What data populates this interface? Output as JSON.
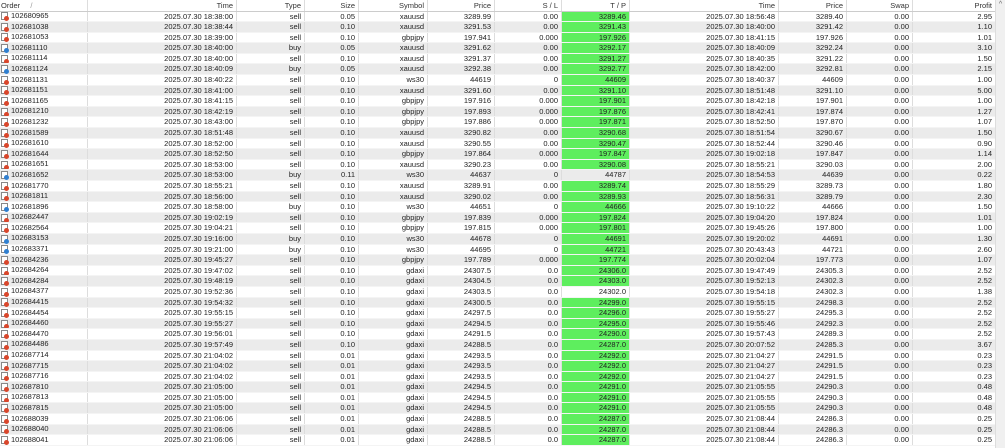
{
  "columns": [
    "Order",
    "Time",
    "Type",
    "Size",
    "Symbol",
    "Price",
    "S / L",
    "T / P",
    "Time",
    "Price",
    "Swap",
    "Profit"
  ],
  "sort_indicator": "/",
  "colors": {
    "tp_highlight": "#5eee5e",
    "sell_icon": "#d9462b",
    "buy_icon": "#2f7fd0",
    "row_alt": "#ebebeb"
  },
  "scroll_up_icon": "^",
  "rows": [
    [
      "102680965",
      "2025.07.30 18:38:00",
      "sell",
      "0.05",
      "xauusd",
      "3289.99",
      "0.00",
      "3289.46",
      "2025.07.30 18:56:48",
      "3289.40",
      "0.00",
      "2.95",
      true
    ],
    [
      "102681038",
      "2025.07.30 18:38:44",
      "sell",
      "0.10",
      "xauusd",
      "3291.53",
      "0.00",
      "3291.43",
      "2025.07.30 18:40:00",
      "3291.42",
      "0.00",
      "1.10",
      true
    ],
    [
      "102681053",
      "2025.07.30 18:39:00",
      "sell",
      "0.10",
      "gbpjpy",
      "197.941",
      "0.000",
      "197.926",
      "2025.07.30 18:41:15",
      "197.926",
      "0.00",
      "1.01",
      true
    ],
    [
      "102681110",
      "2025.07.30 18:40:00",
      "buy",
      "0.05",
      "xauusd",
      "3291.62",
      "0.00",
      "3292.17",
      "2025.07.30 18:40:09",
      "3292.24",
      "0.00",
      "3.10",
      true
    ],
    [
      "102681114",
      "2025.07.30 18:40:00",
      "sell",
      "0.10",
      "xauusd",
      "3291.37",
      "0.00",
      "3291.27",
      "2025.07.30 18:40:35",
      "3291.22",
      "0.00",
      "1.50",
      true
    ],
    [
      "102681124",
      "2025.07.30 18:40:09",
      "buy",
      "0.05",
      "xauusd",
      "3292.38",
      "0.00",
      "3292.77",
      "2025.07.30 18:42:00",
      "3292.81",
      "0.00",
      "2.15",
      true
    ],
    [
      "102681131",
      "2025.07.30 18:40:22",
      "sell",
      "0.10",
      "ws30",
      "44619",
      "0",
      "44609",
      "2025.07.30 18:40:37",
      "44609",
      "0.00",
      "1.00",
      true
    ],
    [
      "102681151",
      "2025.07.30 18:41:00",
      "sell",
      "0.10",
      "xauusd",
      "3291.60",
      "0.00",
      "3291.10",
      "2025.07.30 18:51:48",
      "3291.10",
      "0.00",
      "5.00",
      true
    ],
    [
      "102681165",
      "2025.07.30 18:41:15",
      "sell",
      "0.10",
      "gbpjpy",
      "197.916",
      "0.000",
      "197.901",
      "2025.07.30 18:42:18",
      "197.901",
      "0.00",
      "1.00",
      true
    ],
    [
      "102681210",
      "2025.07.30 18:42:19",
      "sell",
      "0.10",
      "gbpjpy",
      "197.893",
      "0.000",
      "197.876",
      "2025.07.30 18:42:41",
      "197.874",
      "0.00",
      "1.27",
      true
    ],
    [
      "102681232",
      "2025.07.30 18:43:00",
      "sell",
      "0.10",
      "gbpjpy",
      "197.886",
      "0.000",
      "197.871",
      "2025.07.30 18:52:50",
      "197.870",
      "0.00",
      "1.07",
      true
    ],
    [
      "102681589",
      "2025.07.30 18:51:48",
      "sell",
      "0.10",
      "xauusd",
      "3290.82",
      "0.00",
      "3290.68",
      "2025.07.30 18:51:54",
      "3290.67",
      "0.00",
      "1.50",
      true
    ],
    [
      "102681610",
      "2025.07.30 18:52:00",
      "sell",
      "0.10",
      "xauusd",
      "3290.55",
      "0.00",
      "3290.47",
      "2025.07.30 18:52:44",
      "3290.46",
      "0.00",
      "0.90",
      true
    ],
    [
      "102681644",
      "2025.07.30 18:52:50",
      "sell",
      "0.10",
      "gbpjpy",
      "197.864",
      "0.000",
      "197.847",
      "2025.07.30 19:02:18",
      "197.847",
      "0.00",
      "1.14",
      true
    ],
    [
      "102681651",
      "2025.07.30 18:53:00",
      "sell",
      "0.10",
      "xauusd",
      "3290.23",
      "0.00",
      "3290.08",
      "2025.07.30 18:55:21",
      "3290.03",
      "0.00",
      "2.00",
      true
    ],
    [
      "102681652",
      "2025.07.30 18:53:00",
      "buy",
      "0.11",
      "ws30",
      "44637",
      "0",
      "44787",
      "2025.07.30 18:54:53",
      "44639",
      "0.00",
      "0.22",
      false
    ],
    [
      "102681770",
      "2025.07.30 18:55:21",
      "sell",
      "0.10",
      "xauusd",
      "3289.91",
      "0.00",
      "3289.74",
      "2025.07.30 18:55:29",
      "3289.73",
      "0.00",
      "1.80",
      true
    ],
    [
      "102681811",
      "2025.07.30 18:56:00",
      "sell",
      "0.10",
      "xauusd",
      "3290.02",
      "0.00",
      "3289.93",
      "2025.07.30 18:56:31",
      "3289.79",
      "0.00",
      "2.30",
      true
    ],
    [
      "102681896",
      "2025.07.30 18:58:00",
      "buy",
      "0.10",
      "ws30",
      "44651",
      "0",
      "44666",
      "2025.07.30 19:10:22",
      "44666",
      "0.00",
      "1.50",
      true
    ],
    [
      "102682447",
      "2025.07.30 19:02:19",
      "sell",
      "0.10",
      "gbpjpy",
      "197.839",
      "0.000",
      "197.824",
      "2025.07.30 19:04:20",
      "197.824",
      "0.00",
      "1.01",
      true
    ],
    [
      "102682564",
      "2025.07.30 19:04:21",
      "sell",
      "0.10",
      "gbpjpy",
      "197.815",
      "0.000",
      "197.801",
      "2025.07.30 19:45:26",
      "197.800",
      "0.00",
      "1.00",
      true
    ],
    [
      "102683153",
      "2025.07.30 19:16:00",
      "buy",
      "0.10",
      "ws30",
      "44678",
      "0",
      "44691",
      "2025.07.30 19:20:02",
      "44691",
      "0.00",
      "1.30",
      true
    ],
    [
      "102683371",
      "2025.07.30 19:21:00",
      "buy",
      "0.10",
      "ws30",
      "44695",
      "0",
      "44721",
      "2025.07.30 20:43:43",
      "44721",
      "0.00",
      "2.60",
      true
    ],
    [
      "102684236",
      "2025.07.30 19:45:27",
      "sell",
      "0.10",
      "gbpjpy",
      "197.789",
      "0.000",
      "197.774",
      "2025.07.30 20:02:04",
      "197.773",
      "0.00",
      "1.07",
      true
    ],
    [
      "102684264",
      "2025.07.30 19:47:02",
      "sell",
      "0.10",
      "gdaxi",
      "24307.5",
      "0.0",
      "24306.0",
      "2025.07.30 19:47:49",
      "24305.3",
      "0.00",
      "2.52",
      true
    ],
    [
      "102684284",
      "2025.07.30 19:48:19",
      "sell",
      "0.10",
      "gdaxi",
      "24304.5",
      "0.0",
      "24303.0",
      "2025.07.30 19:52:13",
      "24302.3",
      "0.00",
      "2.52",
      true
    ],
    [
      "102684377",
      "2025.07.30 19:52:36",
      "sell",
      "0.10",
      "gdaxi",
      "24303.5",
      "0.0",
      "24302.0",
      "2025.07.30 19:54:18",
      "24302.3",
      "0.00",
      "1.38",
      false
    ],
    [
      "102684415",
      "2025.07.30 19:54:32",
      "sell",
      "0.10",
      "gdaxi",
      "24300.5",
      "0.0",
      "24299.0",
      "2025.07.30 19:55:15",
      "24298.3",
      "0.00",
      "2.52",
      true
    ],
    [
      "102684454",
      "2025.07.30 19:55:15",
      "sell",
      "0.10",
      "gdaxi",
      "24297.5",
      "0.0",
      "24296.0",
      "2025.07.30 19:55:27",
      "24295.3",
      "0.00",
      "2.52",
      true
    ],
    [
      "102684460",
      "2025.07.30 19:55:27",
      "sell",
      "0.10",
      "gdaxi",
      "24294.5",
      "0.0",
      "24295.0",
      "2025.07.30 19:55:46",
      "24292.3",
      "0.00",
      "2.52",
      true
    ],
    [
      "102684470",
      "2025.07.30 19:56:01",
      "sell",
      "0.10",
      "gdaxi",
      "24291.5",
      "0.0",
      "24290.0",
      "2025.07.30 19:57:43",
      "24289.3",
      "0.00",
      "2.52",
      true
    ],
    [
      "102684486",
      "2025.07.30 19:57:49",
      "sell",
      "0.10",
      "gdaxi",
      "24288.5",
      "0.0",
      "24287.0",
      "2025.07.30 20:07:52",
      "24285.3",
      "0.00",
      "3.67",
      true
    ],
    [
      "102687714",
      "2025.07.30 21:04:02",
      "sell",
      "0.01",
      "gdaxi",
      "24293.5",
      "0.0",
      "24292.0",
      "2025.07.30 21:04:27",
      "24291.5",
      "0.00",
      "0.23",
      true
    ],
    [
      "102687715",
      "2025.07.30 21:04:02",
      "sell",
      "0.01",
      "gdaxi",
      "24293.5",
      "0.0",
      "24292.0",
      "2025.07.30 21:04:27",
      "24291.5",
      "0.00",
      "0.23",
      true
    ],
    [
      "102687716",
      "2025.07.30 21:04:02",
      "sell",
      "0.01",
      "gdaxi",
      "24293.5",
      "0.0",
      "24292.0",
      "2025.07.30 21:04:27",
      "24291.5",
      "0.00",
      "0.23",
      true
    ],
    [
      "102687810",
      "2025.07.30 21:05:00",
      "sell",
      "0.01",
      "gdaxi",
      "24294.5",
      "0.0",
      "24291.0",
      "2025.07.30 21:05:55",
      "24290.3",
      "0.00",
      "0.48",
      true
    ],
    [
      "102687813",
      "2025.07.30 21:05:00",
      "sell",
      "0.01",
      "gdaxi",
      "24294.5",
      "0.0",
      "24291.0",
      "2025.07.30 21:05:55",
      "24290.3",
      "0.00",
      "0.48",
      true
    ],
    [
      "102687815",
      "2025.07.30 21:05:00",
      "sell",
      "0.01",
      "gdaxi",
      "24294.5",
      "0.0",
      "24291.0",
      "2025.07.30 21:05:55",
      "24290.3",
      "0.00",
      "0.48",
      true
    ],
    [
      "102688039",
      "2025.07.30 21:06:06",
      "sell",
      "0.01",
      "gdaxi",
      "24288.5",
      "0.0",
      "24287.0",
      "2025.07.30 21:08:44",
      "24286.3",
      "0.00",
      "0.25",
      true
    ],
    [
      "102688040",
      "2025.07.30 21:06:06",
      "sell",
      "0.01",
      "gdaxi",
      "24288.5",
      "0.0",
      "24287.0",
      "2025.07.30 21:08:44",
      "24286.3",
      "0.00",
      "0.25",
      true
    ],
    [
      "102688041",
      "2025.07.30 21:06:06",
      "sell",
      "0.01",
      "gdaxi",
      "24288.5",
      "0.0",
      "24287.0",
      "2025.07.30 21:08:44",
      "24286.3",
      "0.00",
      "0.25",
      true
    ]
  ]
}
